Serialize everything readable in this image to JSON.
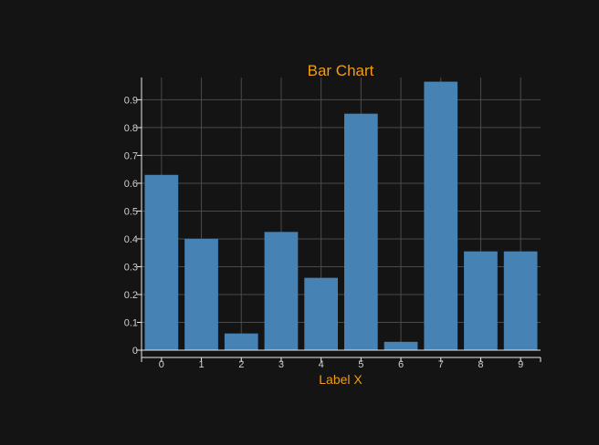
{
  "colors": {
    "background": "#141414",
    "bar": "#4682b4",
    "title": "#f39c12",
    "axis_label": "#f39c12",
    "tick_label": "#cfcfcf",
    "grid": "#4a4a4a",
    "axis": "#e8e8e8"
  },
  "chart_data": {
    "type": "bar",
    "title": "Bar Chart",
    "xlabel": "Label X",
    "ylabel": "",
    "categories": [
      "0",
      "1",
      "2",
      "3",
      "4",
      "5",
      "6",
      "7",
      "8",
      "9"
    ],
    "values": [
      0.63,
      0.4,
      0.06,
      0.425,
      0.26,
      0.85,
      0.03,
      0.965,
      0.355,
      0.355
    ],
    "ylim": [
      0,
      0.98
    ],
    "yticks": [
      0,
      0.1,
      0.2,
      0.3,
      0.4,
      0.5,
      0.6,
      0.7,
      0.8,
      0.9
    ],
    "ytick_labels": [
      "0",
      "0.1",
      "0.2",
      "0.3",
      "0.4",
      "0.5",
      "0.6",
      "0.7",
      "0.8",
      "0.9"
    ],
    "grid": true,
    "legend": "none"
  }
}
